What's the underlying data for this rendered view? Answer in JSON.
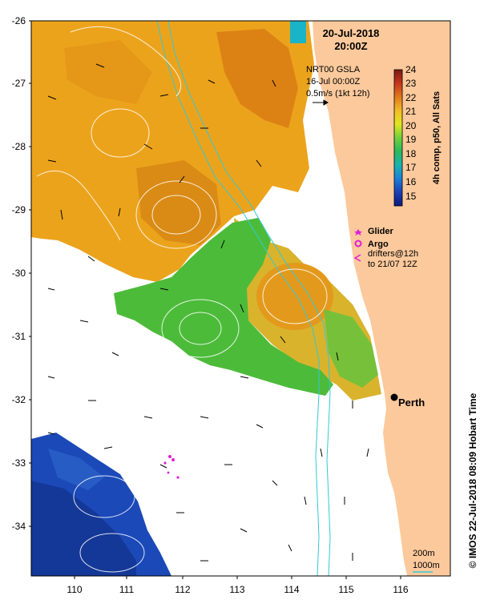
{
  "header": {
    "date": "20-Jul-2018",
    "time": "20:00Z"
  },
  "gsla": {
    "line1": "NRT00 GSLA",
    "line2": "16-Jul 00:00Z",
    "line3": "0.5m/s (1kt 12h)"
  },
  "colorbar": {
    "title": "4h comp, p50, All Sats",
    "ticks": [
      "24",
      "23",
      "22",
      "21",
      "20",
      "19",
      "18",
      "17",
      "16",
      "15"
    ]
  },
  "legend": {
    "glider": "Glider",
    "argo": "Argo",
    "drifters_line1": "drifters@12h",
    "drifters_line2": "to 21/07 12Z"
  },
  "city": {
    "name": "Perth"
  },
  "axes": {
    "lat_ticks": [
      "-26",
      "-27",
      "-28",
      "-29",
      "-30",
      "-31",
      "-32",
      "-33",
      "-34"
    ],
    "lon_ticks": [
      "110",
      "111",
      "112",
      "113",
      "114",
      "115",
      "116"
    ]
  },
  "isobaths": {
    "line1": "200m",
    "line2": "1000m"
  },
  "credit": "© IMOS 22-Jul-2018 08:09 Hobart Time",
  "colors": {
    "land": "#fcc99c",
    "warm": "#eca31c",
    "hot": "#d97c14",
    "green": "#4cbb3a",
    "cool": "#1b49b8",
    "isobath": "#33c9d6"
  }
}
